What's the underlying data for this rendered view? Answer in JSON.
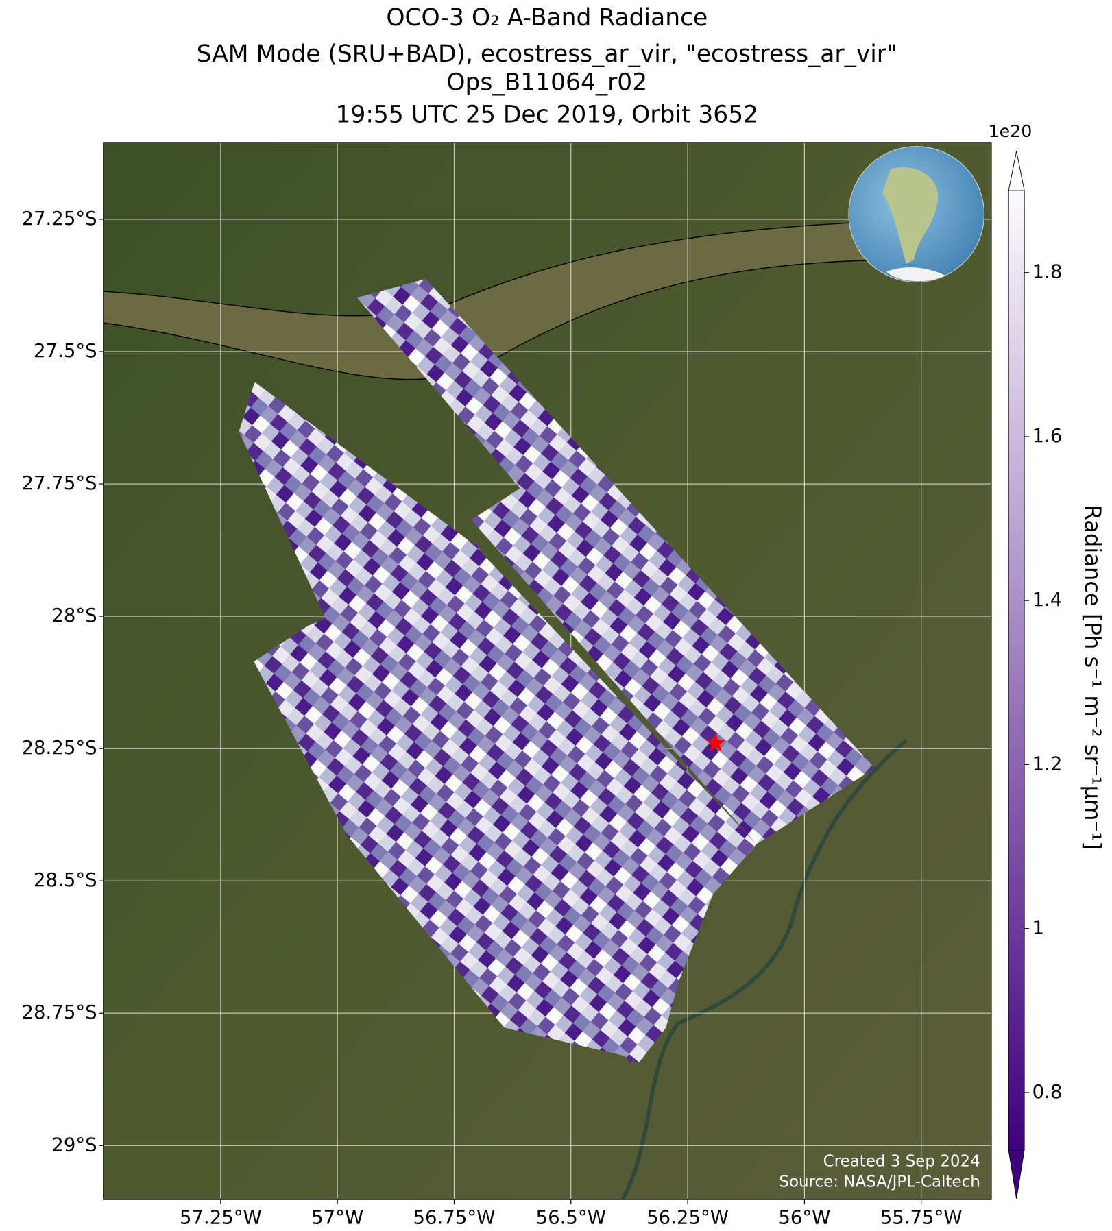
{
  "chart_data": {
    "type": "map",
    "title_lines": [
      "OCO-3 O₂ A-Band Radiance",
      "SAM Mode (SRU+BAD), ecostress_ar_vir, \"ecostress_ar_vir\"",
      "Ops_B11064_r02",
      "19:55 UTC 25 Dec 2019, Orbit 3652"
    ],
    "xlim": [
      -57.501,
      -55.6
    ],
    "ylim": [
      -29.102,
      -27.105
    ],
    "xticks": [
      {
        "value": -57.25,
        "label": "57.25°W"
      },
      {
        "value": -57,
        "label": "57°W"
      },
      {
        "value": -56.75,
        "label": "56.75°W"
      },
      {
        "value": -56.5,
        "label": "56.5°W"
      },
      {
        "value": -56.25,
        "label": "56.25°W"
      },
      {
        "value": -56,
        "label": "56°W"
      },
      {
        "value": -55.75,
        "label": "55.75°W"
      }
    ],
    "yticks": [
      {
        "value": -27.25,
        "label": "27.25°S"
      },
      {
        "value": -27.5,
        "label": "27.5°S"
      },
      {
        "value": -27.75,
        "label": "27.75°S"
      },
      {
        "value": -28,
        "label": "28°S"
      },
      {
        "value": -28.25,
        "label": "28.25°S"
      },
      {
        "value": -28.5,
        "label": "28.5°S"
      },
      {
        "value": -28.75,
        "label": "28.75°S"
      },
      {
        "value": -29,
        "label": "29°S"
      }
    ],
    "grid": true,
    "target": {
      "lon": -56.19,
      "lat": -28.24,
      "color": "#ff0000"
    },
    "colorbar": {
      "label": "Radiance [Ph s⁻¹ m⁻² sr⁻¹μm⁻¹]",
      "offset_label": "1e20",
      "lim": [
        0.73,
        1.9
      ],
      "ticks": [
        0.8,
        1.0,
        1.2,
        1.4,
        1.6,
        1.8
      ],
      "colors": [
        "#3f007d",
        "#fcfbfd"
      ]
    },
    "credits": [
      "Created 3 Sep 2024",
      "Source: NASA/JPL-Caltech"
    ]
  }
}
